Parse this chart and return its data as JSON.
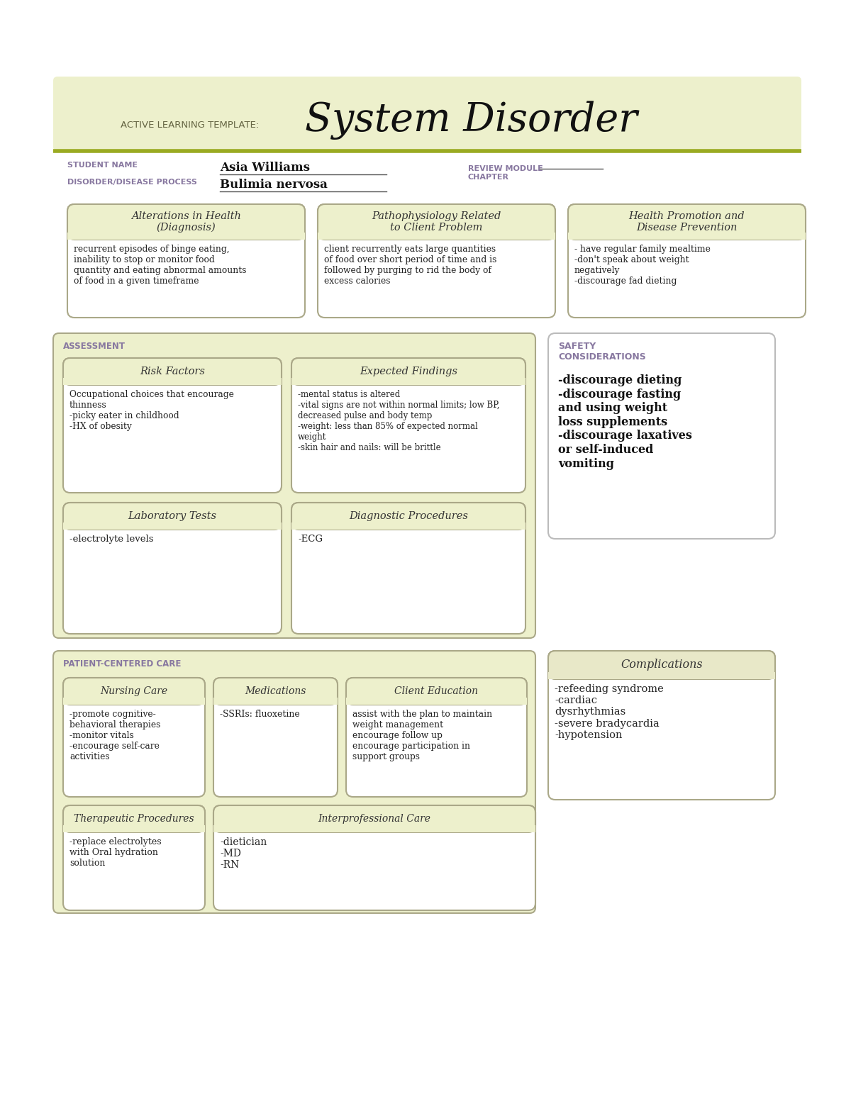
{
  "title_label": "ACTIVE LEARNING TEMPLATE:",
  "title_main": "System Disorder",
  "student_name_label": "STUDENT NAME",
  "student_name": "Asia Williams",
  "disorder_label": "DISORDER/DISEASE PROCESS",
  "disorder_name": "Bulimia nervosa",
  "review_label": "REVIEW MODULE\nCHAPTER",
  "bg_color": "#ffffff",
  "header_bg": "#edf0cc",
  "header_line_color": "#9aaa22",
  "label_color": "#8878a0",
  "section_bg": "#edf0cc",
  "box_bg": "#edf0cc",
  "box_border": "#aaa888",
  "section_border": "#aaa888",
  "safety_border": "#bbbbbb",
  "box1_title": "Alterations in Health\n(Diagnosis)",
  "box1_content": "recurrent episodes of binge eating,\ninability to stop or monitor food\nquantity and eating abnormal amounts\nof food in a given timeframe",
  "box2_title": "Pathophysiology Related\nto Client Problem",
  "box2_content": "client recurrently eats large quantities\nof food over short period of time and is\nfollowed by purging to rid the body of\nexcess calories",
  "box3_title": "Health Promotion and\nDisease Prevention",
  "box3_content": "- have regular family mealtime\n-don't speak about weight\nnegatively\n-discourage fad dieting",
  "assessment_label": "ASSESSMENT",
  "safety_label": "SAFETY\nCONSIDERATIONS",
  "rf_title": "Risk Factors",
  "rf_content": "Occupational choices that encourage\nthinness\n-picky eater in childhood\n-HX of obesity",
  "ef_title": "Expected Findings",
  "ef_content": "-mental status is altered\n-vital signs are not within normal limits; low BP,\ndecreased pulse and body temp\n-weight: less than 85% of expected normal\nweight\n-skin hair and nails: will be brittle",
  "lt_title": "Laboratory Tests",
  "lt_content": "-electrolyte levels",
  "dp_title": "Diagnostic Procedures",
  "dp_content": "-ECG",
  "safety_content": "-discourage dieting\n-discourage fasting\nand using weight\nloss supplements\n-discourage laxatives\nor self-induced\nvomiting",
  "patient_label": "PATIENT-CENTERED CARE",
  "complications_title": "Complications",
  "complications_content": "-refeeding syndrome\n-cardiac\ndysrhythmias\n-severe bradycardia\n-hypotension",
  "nc_title": "Nursing Care",
  "nc_content": "-promote cognitive-\nbehavioral therapies\n-monitor vitals\n-encourage self-care\nactivities",
  "med_title": "Medications",
  "med_content": "-SSRIs: fluoxetine",
  "ce_title": "Client Education",
  "ce_content": "assist with the plan to maintain\nweight management\nencourage follow up\nencourage participation in\nsupport groups",
  "tp_title": "Therapeutic Procedures",
  "tp_content": "-replace electrolytes\nwith Oral hydration\nsolution",
  "ic_title": "Interprofessional Care",
  "ic_content": "-dietician\n-MD\n-RN"
}
